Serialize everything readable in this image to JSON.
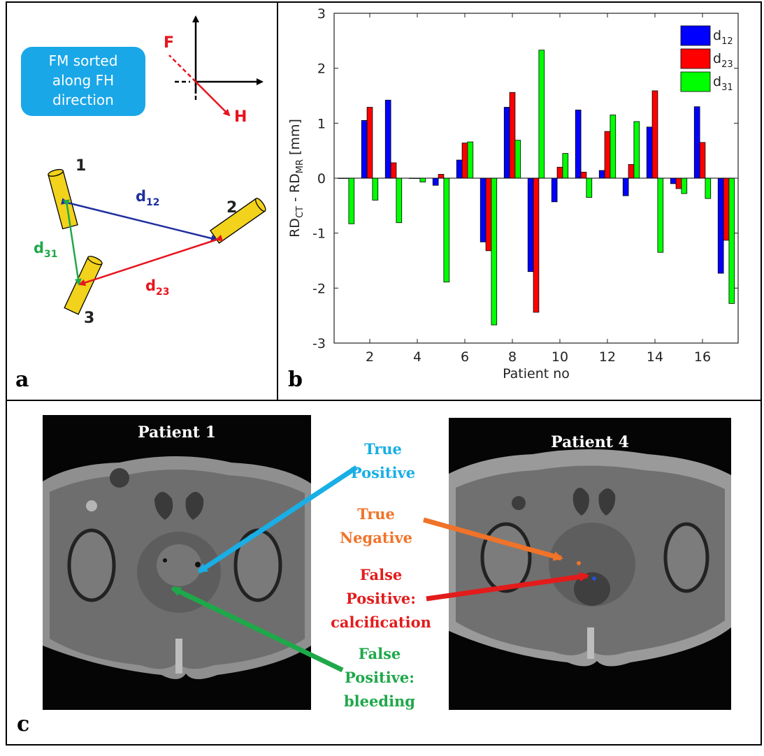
{
  "panel_a": {
    "label": "a",
    "box_text": [
      "FM sorted",
      "along FH",
      "direction"
    ],
    "axis_F": "F",
    "axis_H": "H",
    "marker_1": "1",
    "marker_2": "2",
    "marker_3": "3",
    "d12": {
      "base": "d",
      "sub": "12"
    },
    "d23": {
      "base": "d",
      "sub": "23"
    },
    "d31": {
      "base": "d",
      "sub": "31"
    },
    "colors": {
      "box": "#1aa7e8",
      "marker": "#f2d21b",
      "d12": "#1f2f9e",
      "d23": "#e8141e",
      "d31": "#1fa84a",
      "F": "#e8141e"
    }
  },
  "panel_b": {
    "label": "b"
  },
  "chart_data": {
    "type": "bar",
    "xlabel": "Patient no",
    "ylabel": "RD_CT - RD_MR [mm]",
    "ylabel_parts": {
      "a": "RD",
      "a_sub": "CT",
      "mid": " - RD",
      "b_sub": "MR",
      "end": " [mm]"
    },
    "ylim": [
      -3,
      3
    ],
    "xlim": [
      0.5,
      17.5
    ],
    "yticks": [
      "-3",
      "-2",
      "-1",
      "0",
      "1",
      "2",
      "3"
    ],
    "xticks": [
      "2",
      "4",
      "6",
      "8",
      "10",
      "12",
      "14",
      "16"
    ],
    "categories": [
      1,
      2,
      3,
      4,
      5,
      6,
      7,
      8,
      9,
      10,
      11,
      12,
      13,
      14,
      15,
      16,
      17
    ],
    "legend_position": "top-right",
    "series": [
      {
        "name": "d12",
        "label_base": "d",
        "label_sub": "12",
        "color": "#0000ff",
        "values": [
          0.0,
          1.05,
          1.42,
          0.0,
          -0.13,
          0.33,
          -1.16,
          1.29,
          -1.7,
          -0.43,
          1.24,
          0.14,
          -0.32,
          0.93,
          -0.1,
          1.3,
          -1.73
        ]
      },
      {
        "name": "d23",
        "label_base": "d",
        "label_sub": "23",
        "color": "#ff0000",
        "values": [
          0.0,
          1.29,
          0.28,
          0.0,
          0.07,
          0.64,
          -1.32,
          1.56,
          -2.44,
          0.2,
          0.11,
          0.85,
          0.25,
          1.59,
          -0.19,
          0.65,
          -1.13
        ]
      },
      {
        "name": "d31",
        "label_base": "d",
        "label_sub": "31",
        "color": "#00ff00",
        "values": [
          -0.83,
          -0.4,
          -0.81,
          -0.07,
          -1.89,
          0.66,
          -2.67,
          0.69,
          2.33,
          0.45,
          -0.35,
          1.15,
          1.03,
          -1.35,
          -0.28,
          -0.37,
          -2.28
        ]
      }
    ]
  },
  "panel_c": {
    "label": "c",
    "patient1_title": "Patient 1",
    "patient4_title": "Patient 4",
    "true_positive": [
      "True",
      "Positive"
    ],
    "true_negative": [
      "True",
      "Negative"
    ],
    "false_positive_calc": [
      "False",
      "Positive:",
      "calcification"
    ],
    "false_positive_bleed": [
      "False",
      "Positive:",
      "bleeding"
    ],
    "colors": {
      "true_positive": "#19aee6",
      "true_negative": "#f07329",
      "false_positive_calc": "#e31b1b",
      "false_positive_bleed": "#1fa84a"
    }
  }
}
